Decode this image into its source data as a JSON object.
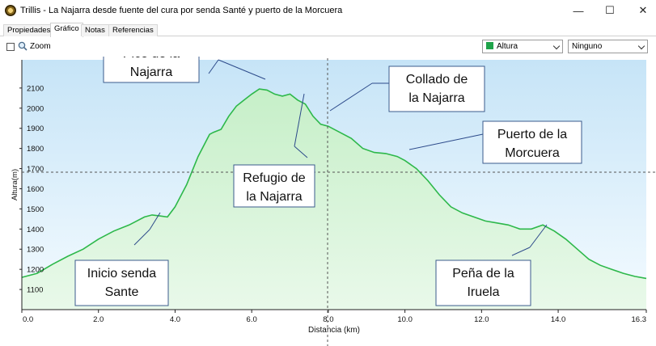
{
  "window": {
    "title": "Trillis - La Najarra desde fuente del cura por senda Santé y puerto de la Morcuera",
    "minimize_glyph": "—",
    "maximize_glyph": "☐",
    "close_glyph": "✕"
  },
  "tabs": [
    {
      "label": "Propiedades",
      "active": false
    },
    {
      "label": "Gráfico",
      "active": true
    },
    {
      "label": "Notas",
      "active": false
    },
    {
      "label": "Referencias",
      "active": false
    }
  ],
  "toolbar": {
    "zoom_label": "Zoom",
    "zoom_checked": false,
    "series_select": "Altura",
    "series_color": "#1fa34a",
    "secondary_select": "Ninguno"
  },
  "chart_data": {
    "type": "area",
    "title": "",
    "xlabel": "Distancia  (km)",
    "ylabel": "Altura(m)",
    "xlim": [
      0,
      16.3
    ],
    "ylim": [
      1000,
      2240
    ],
    "x_ticks": [
      "0.0",
      "2.0",
      "4.0",
      "6.0",
      "8.0",
      "10.0",
      "12.0",
      "14.0",
      "16.3"
    ],
    "y_ticks": [
      "1100",
      "1200",
      "1300",
      "1400",
      "1500",
      "1600",
      "1700",
      "1800",
      "1900",
      "2000",
      "2100"
    ],
    "line_color": "#2db84a",
    "series": [
      {
        "x": [
          0,
          0.4,
          0.8,
          1.2,
          1.6,
          2.0,
          2.4,
          2.8,
          3.2,
          3.4,
          3.6,
          3.8,
          4.0,
          4.3,
          4.6,
          4.9,
          5.0,
          5.2,
          5.4,
          5.6,
          5.8,
          6.0,
          6.2,
          6.4,
          6.6,
          6.8,
          7.0,
          7.2,
          7.4,
          7.6,
          7.8,
          8.0,
          8.3,
          8.6,
          8.9,
          9.2,
          9.5,
          9.8,
          10.0,
          10.3,
          10.6,
          10.9,
          11.2,
          11.5,
          11.8,
          12.1,
          12.4,
          12.7,
          13.0,
          13.3,
          13.6,
          13.9,
          14.2,
          14.5,
          14.8,
          15.1,
          15.4,
          15.7,
          16.0,
          16.3
        ],
        "y": [
          1160,
          1180,
          1225,
          1265,
          1300,
          1350,
          1390,
          1420,
          1460,
          1470,
          1465,
          1460,
          1510,
          1620,
          1760,
          1870,
          1880,
          1895,
          1960,
          2010,
          2040,
          2070,
          2095,
          2090,
          2070,
          2060,
          2070,
          2040,
          2020,
          1960,
          1920,
          1910,
          1880,
          1850,
          1800,
          1780,
          1775,
          1760,
          1740,
          1700,
          1640,
          1570,
          1510,
          1480,
          1460,
          1440,
          1430,
          1420,
          1400,
          1400,
          1420,
          1390,
          1350,
          1300,
          1250,
          1220,
          1200,
          1180,
          1165,
          1155
        ]
      }
    ],
    "annotations": [
      {
        "line1": "Pico de la",
        "line2": "Najarra"
      },
      {
        "line1": "Collado de",
        "line2": "la Najarra"
      },
      {
        "line1": "Puerto de la",
        "line2": "Morcuera"
      },
      {
        "line1": "Refugio de",
        "line2": "la Najarra"
      },
      {
        "line1": "Inicio senda",
        "line2": "Sante"
      },
      {
        "line1": "Peña de la",
        "line2": "Iruela"
      }
    ]
  }
}
